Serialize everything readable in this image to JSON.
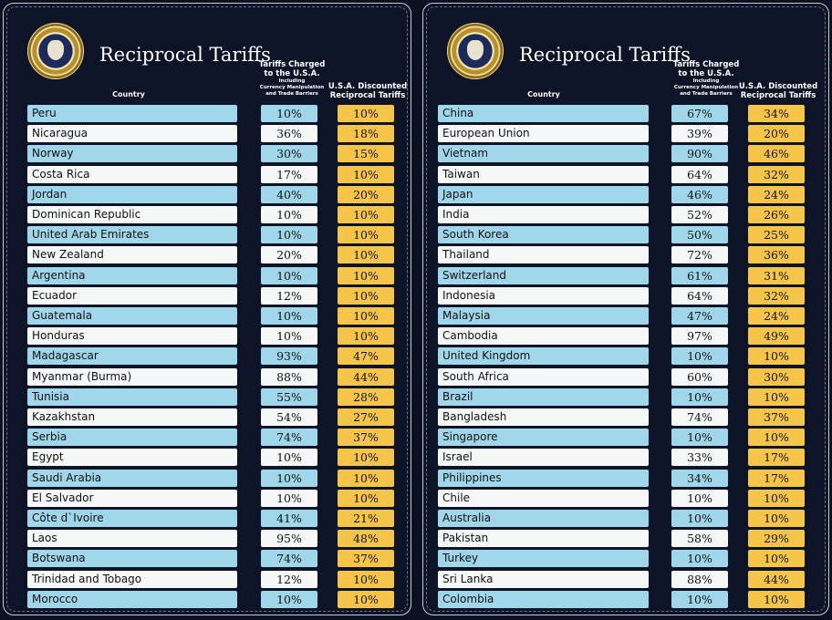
{
  "colors": {
    "background": "#0e1428",
    "row_blue": "#9fd6ea",
    "row_white": "#f6f7f7",
    "discount_yellow": "#f5c54a"
  },
  "header": {
    "title": "Reciprocal Tariffs",
    "seal_icon": "presidential-seal-icon",
    "col_country": "Country",
    "col_charged_line1": "Tariffs Charged",
    "col_charged_line2": "to the U.S.A.",
    "col_charged_sub1": "Including",
    "col_charged_sub2": "Currency Manipulation",
    "col_charged_sub3": "and Trade Barriers",
    "col_discount_line1": "U.S.A. Discounted",
    "col_discount_line2": "Reciprocal Tariffs"
  },
  "left_table": [
    {
      "country": "Peru",
      "charged": "10%",
      "discounted": "10%"
    },
    {
      "country": "Nicaragua",
      "charged": "36%",
      "discounted": "18%"
    },
    {
      "country": "Norway",
      "charged": "30%",
      "discounted": "15%"
    },
    {
      "country": "Costa Rica",
      "charged": "17%",
      "discounted": "10%"
    },
    {
      "country": "Jordan",
      "charged": "40%",
      "discounted": "20%"
    },
    {
      "country": "Dominican Republic",
      "charged": "10%",
      "discounted": "10%"
    },
    {
      "country": "United Arab Emirates",
      "charged": "10%",
      "discounted": "10%"
    },
    {
      "country": "New Zealand",
      "charged": "20%",
      "discounted": "10%"
    },
    {
      "country": "Argentina",
      "charged": "10%",
      "discounted": "10%"
    },
    {
      "country": "Ecuador",
      "charged": "12%",
      "discounted": "10%"
    },
    {
      "country": "Guatemala",
      "charged": "10%",
      "discounted": "10%"
    },
    {
      "country": "Honduras",
      "charged": "10%",
      "discounted": "10%"
    },
    {
      "country": "Madagascar",
      "charged": "93%",
      "discounted": "47%"
    },
    {
      "country": "Myanmar (Burma)",
      "charged": "88%",
      "discounted": "44%"
    },
    {
      "country": "Tunisia",
      "charged": "55%",
      "discounted": "28%"
    },
    {
      "country": "Kazakhstan",
      "charged": "54%",
      "discounted": "27%"
    },
    {
      "country": "Serbia",
      "charged": "74%",
      "discounted": "37%"
    },
    {
      "country": "Egypt",
      "charged": "10%",
      "discounted": "10%"
    },
    {
      "country": "Saudi Arabia",
      "charged": "10%",
      "discounted": "10%"
    },
    {
      "country": "El Salvador",
      "charged": "10%",
      "discounted": "10%"
    },
    {
      "country": "Côte d`Ivoire",
      "charged": "41%",
      "discounted": "21%"
    },
    {
      "country": "Laos",
      "charged": "95%",
      "discounted": "48%"
    },
    {
      "country": "Botswana",
      "charged": "74%",
      "discounted": "37%"
    },
    {
      "country": "Trinidad and Tobago",
      "charged": "12%",
      "discounted": "10%"
    },
    {
      "country": "Morocco",
      "charged": "10%",
      "discounted": "10%"
    }
  ],
  "right_table": [
    {
      "country": "China",
      "charged": "67%",
      "discounted": "34%"
    },
    {
      "country": "European Union",
      "charged": "39%",
      "discounted": "20%"
    },
    {
      "country": "Vietnam",
      "charged": "90%",
      "discounted": "46%"
    },
    {
      "country": "Taiwan",
      "charged": "64%",
      "discounted": "32%"
    },
    {
      "country": "Japan",
      "charged": "46%",
      "discounted": "24%"
    },
    {
      "country": "India",
      "charged": "52%",
      "discounted": "26%"
    },
    {
      "country": "South Korea",
      "charged": "50%",
      "discounted": "25%"
    },
    {
      "country": "Thailand",
      "charged": "72%",
      "discounted": "36%"
    },
    {
      "country": "Switzerland",
      "charged": "61%",
      "discounted": "31%"
    },
    {
      "country": "Indonesia",
      "charged": "64%",
      "discounted": "32%"
    },
    {
      "country": "Malaysia",
      "charged": "47%",
      "discounted": "24%"
    },
    {
      "country": "Cambodia",
      "charged": "97%",
      "discounted": "49%"
    },
    {
      "country": "United Kingdom",
      "charged": "10%",
      "discounted": "10%"
    },
    {
      "country": "South Africa",
      "charged": "60%",
      "discounted": "30%"
    },
    {
      "country": "Brazil",
      "charged": "10%",
      "discounted": "10%"
    },
    {
      "country": "Bangladesh",
      "charged": "74%",
      "discounted": "37%"
    },
    {
      "country": "Singapore",
      "charged": "10%",
      "discounted": "10%"
    },
    {
      "country": "Israel",
      "charged": "33%",
      "discounted": "17%"
    },
    {
      "country": "Philippines",
      "charged": "34%",
      "discounted": "17%"
    },
    {
      "country": "Chile",
      "charged": "10%",
      "discounted": "10%"
    },
    {
      "country": "Australia",
      "charged": "10%",
      "discounted": "10%"
    },
    {
      "country": "Pakistan",
      "charged": "58%",
      "discounted": "29%"
    },
    {
      "country": "Turkey",
      "charged": "10%",
      "discounted": "10%"
    },
    {
      "country": "Sri Lanka",
      "charged": "88%",
      "discounted": "44%"
    },
    {
      "country": "Colombia",
      "charged": "10%",
      "discounted": "10%"
    }
  ]
}
